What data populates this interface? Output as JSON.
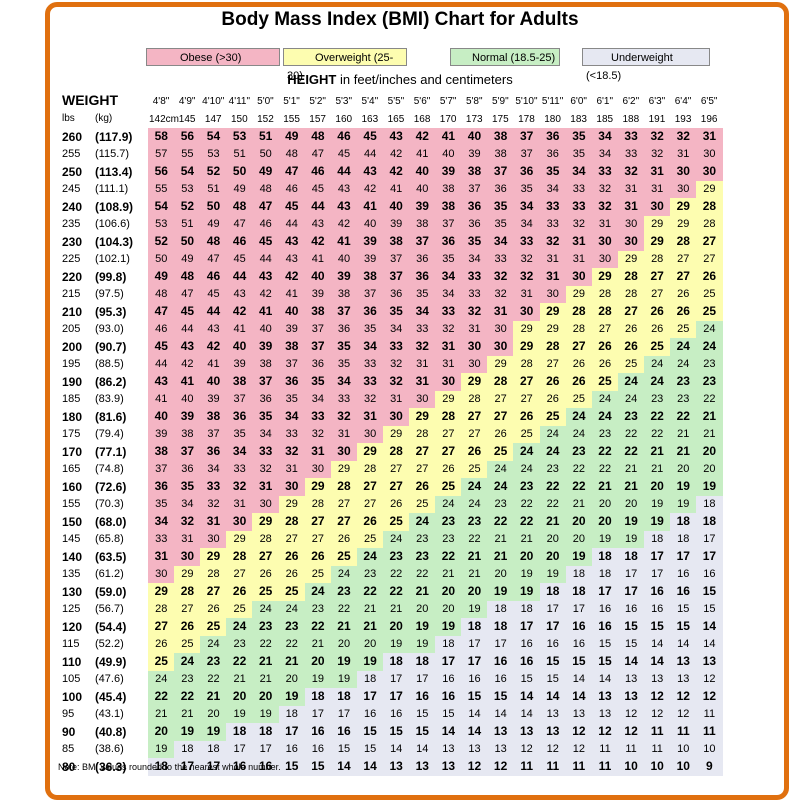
{
  "title": "Body Mass Index (BMI) Chart for Adults",
  "legend": [
    {
      "label": "Obese (>30)",
      "color": "#f4b5c4"
    },
    {
      "label": "Overweight (25-30)",
      "color": "#fdfdb0"
    },
    {
      "label": "Normal (18.5-25)",
      "color": "#c7eec4"
    },
    {
      "label": "Underweight (<18.5)",
      "color": "#e6e8f2"
    }
  ],
  "height_header_bold": "HEIGHT",
  "height_header_rest": " in feet/inches and centimeters",
  "weight_header": "WEIGHT",
  "unit_lbs": "lbs",
  "unit_kg": "(kg)",
  "note": "Note: BMI values rounded to the nearest whole number.",
  "chart_data": {
    "type": "table",
    "heights_ft": [
      "4'8\"",
      "4'9\"",
      "4'10\"",
      "4'11\"",
      "5'0\"",
      "5'1\"",
      "5'2\"",
      "5'3\"",
      "5'4\"",
      "5'5\"",
      "5'6\"",
      "5'7\"",
      "5'8\"",
      "5'9\"",
      "5'10\"",
      "5'11\"",
      "6'0\"",
      "6'1\"",
      "6'2\"",
      "6'3\"",
      "6'4\"",
      "6'5\""
    ],
    "heights_cm": [
      "142cm",
      "145",
      "147",
      "150",
      "152",
      "155",
      "157",
      "160",
      "163",
      "165",
      "168",
      "170",
      "173",
      "175",
      "178",
      "180",
      "183",
      "185",
      "188",
      "191",
      "193",
      "196"
    ],
    "weights_lbs": [
      "260",
      "255",
      "250",
      "245",
      "240",
      "235",
      "230",
      "225",
      "220",
      "215",
      "210",
      "205",
      "200",
      "195",
      "190",
      "185",
      "180",
      "175",
      "170",
      "165",
      "160",
      "155",
      "150",
      "145",
      "140",
      "135",
      "130",
      "125",
      "120",
      "115",
      "110",
      "105",
      "100",
      "95",
      "90",
      "85",
      "80"
    ],
    "weights_kg": [
      "(117.9)",
      "(115.7)",
      "(113.4)",
      "(111.1)",
      "(108.9)",
      "(106.6)",
      "(104.3)",
      "(102.1)",
      "(99.8)",
      "(97.5)",
      "(95.3)",
      "(93.0)",
      "(90.7)",
      "(88.5)",
      "(86.2)",
      "(83.9)",
      "(81.6)",
      "(79.4)",
      "(77.1)",
      "(74.8)",
      "(72.6)",
      "(70.3)",
      "(68.0)",
      "(65.8)",
      "(63.5)",
      "(61.2)",
      "(59.0)",
      "(56.7)",
      "(54.4)",
      "(52.2)",
      "(49.9)",
      "(47.6)",
      "(45.4)",
      "(43.1)",
      "(40.8)",
      "(38.6)",
      "(36.3)"
    ],
    "bmi": [
      [
        58,
        56,
        54,
        53,
        51,
        49,
        48,
        46,
        45,
        43,
        42,
        41,
        40,
        38,
        37,
        36,
        35,
        34,
        33,
        32,
        32,
        31
      ],
      [
        57,
        55,
        53,
        51,
        50,
        48,
        47,
        45,
        44,
        42,
        41,
        40,
        39,
        38,
        37,
        36,
        35,
        34,
        33,
        32,
        31,
        30
      ],
      [
        56,
        54,
        52,
        50,
        49,
        47,
        46,
        44,
        43,
        42,
        40,
        39,
        38,
        37,
        36,
        35,
        34,
        33,
        32,
        31,
        30,
        30
      ],
      [
        55,
        53,
        51,
        49,
        48,
        46,
        45,
        43,
        42,
        41,
        40,
        38,
        37,
        36,
        35,
        34,
        33,
        32,
        31,
        31,
        30,
        29
      ],
      [
        54,
        52,
        50,
        48,
        47,
        45,
        44,
        43,
        41,
        40,
        39,
        38,
        36,
        35,
        34,
        33,
        33,
        32,
        31,
        30,
        29,
        28
      ],
      [
        53,
        51,
        49,
        47,
        46,
        44,
        43,
        42,
        40,
        39,
        38,
        37,
        36,
        35,
        34,
        33,
        32,
        31,
        30,
        29,
        29,
        28
      ],
      [
        52,
        50,
        48,
        46,
        45,
        43,
        42,
        41,
        39,
        38,
        37,
        36,
        35,
        34,
        33,
        32,
        31,
        30,
        30,
        29,
        28,
        27
      ],
      [
        50,
        49,
        47,
        45,
        44,
        43,
        41,
        40,
        39,
        37,
        36,
        35,
        34,
        33,
        32,
        31,
        31,
        30,
        29,
        28,
        27,
        27
      ],
      [
        49,
        48,
        46,
        44,
        43,
        42,
        40,
        39,
        38,
        37,
        36,
        34,
        33,
        32,
        32,
        31,
        30,
        29,
        28,
        27,
        27,
        26
      ],
      [
        48,
        47,
        45,
        43,
        42,
        41,
        39,
        38,
        37,
        36,
        35,
        34,
        33,
        32,
        31,
        30,
        29,
        28,
        28,
        27,
        26,
        25
      ],
      [
        47,
        45,
        44,
        42,
        41,
        40,
        38,
        37,
        36,
        35,
        34,
        33,
        32,
        31,
        30,
        29,
        28,
        28,
        27,
        26,
        26,
        25
      ],
      [
        46,
        44,
        43,
        41,
        40,
        39,
        37,
        36,
        35,
        34,
        33,
        32,
        31,
        30,
        29,
        29,
        28,
        27,
        26,
        26,
        25,
        24
      ],
      [
        45,
        43,
        42,
        40,
        39,
        38,
        37,
        35,
        34,
        33,
        32,
        31,
        30,
        30,
        29,
        28,
        27,
        26,
        26,
        25,
        24,
        24
      ],
      [
        44,
        42,
        41,
        39,
        38,
        37,
        36,
        35,
        33,
        32,
        31,
        31,
        30,
        29,
        28,
        27,
        26,
        26,
        25,
        24,
        24,
        23
      ],
      [
        43,
        41,
        40,
        38,
        37,
        36,
        35,
        34,
        33,
        32,
        31,
        30,
        29,
        28,
        27,
        26,
        26,
        25,
        24,
        24,
        23,
        23
      ],
      [
        41,
        40,
        39,
        37,
        36,
        35,
        34,
        33,
        32,
        31,
        30,
        29,
        28,
        27,
        27,
        26,
        25,
        24,
        24,
        23,
        23,
        22
      ],
      [
        40,
        39,
        38,
        36,
        35,
        34,
        33,
        32,
        31,
        30,
        29,
        28,
        27,
        27,
        26,
        25,
        24,
        24,
        23,
        22,
        22,
        21
      ],
      [
        39,
        38,
        37,
        35,
        34,
        33,
        32,
        31,
        30,
        29,
        28,
        27,
        27,
        26,
        25,
        24,
        24,
        23,
        22,
        22,
        21,
        21
      ],
      [
        38,
        37,
        36,
        34,
        33,
        32,
        31,
        30,
        29,
        28,
        27,
        27,
        26,
        25,
        24,
        24,
        23,
        22,
        22,
        21,
        21,
        20
      ],
      [
        37,
        36,
        34,
        33,
        32,
        31,
        30,
        29,
        28,
        27,
        27,
        26,
        25,
        24,
        24,
        23,
        22,
        22,
        21,
        21,
        20,
        20
      ],
      [
        36,
        35,
        33,
        32,
        31,
        30,
        29,
        28,
        27,
        27,
        26,
        25,
        24,
        24,
        23,
        22,
        22,
        21,
        21,
        20,
        19,
        19
      ],
      [
        35,
        34,
        32,
        31,
        30,
        29,
        28,
        27,
        27,
        26,
        25,
        24,
        24,
        23,
        22,
        22,
        21,
        20,
        20,
        19,
        19,
        18
      ],
      [
        34,
        32,
        31,
        30,
        29,
        28,
        27,
        27,
        26,
        25,
        24,
        23,
        23,
        22,
        22,
        21,
        20,
        20,
        19,
        19,
        18,
        18
      ],
      [
        33,
        31,
        30,
        29,
        28,
        27,
        27,
        26,
        25,
        24,
        23,
        23,
        22,
        21,
        21,
        20,
        20,
        19,
        19,
        18,
        18,
        17
      ],
      [
        31,
        30,
        29,
        28,
        27,
        26,
        26,
        25,
        24,
        23,
        23,
        22,
        21,
        21,
        20,
        20,
        19,
        18,
        18,
        17,
        17,
        17
      ],
      [
        30,
        29,
        28,
        27,
        26,
        26,
        25,
        24,
        23,
        22,
        22,
        21,
        21,
        20,
        19,
        19,
        18,
        18,
        17,
        17,
        16,
        16
      ],
      [
        29,
        28,
        27,
        26,
        25,
        25,
        24,
        23,
        22,
        22,
        21,
        20,
        20,
        19,
        19,
        18,
        18,
        17,
        17,
        16,
        16,
        15
      ],
      [
        28,
        27,
        26,
        25,
        24,
        24,
        23,
        22,
        21,
        21,
        20,
        20,
        19,
        18,
        18,
        17,
        17,
        16,
        16,
        16,
        15,
        15
      ],
      [
        27,
        26,
        25,
        24,
        23,
        23,
        22,
        21,
        21,
        20,
        19,
        19,
        18,
        18,
        17,
        17,
        16,
        16,
        15,
        15,
        15,
        14
      ],
      [
        26,
        25,
        24,
        23,
        22,
        22,
        21,
        20,
        20,
        19,
        19,
        18,
        17,
        17,
        16,
        16,
        16,
        15,
        15,
        14,
        14,
        14
      ],
      [
        25,
        24,
        23,
        22,
        21,
        21,
        20,
        19,
        19,
        18,
        18,
        17,
        17,
        16,
        16,
        15,
        15,
        15,
        14,
        14,
        13,
        13
      ],
      [
        24,
        23,
        22,
        21,
        21,
        20,
        19,
        19,
        18,
        17,
        17,
        16,
        16,
        16,
        15,
        15,
        14,
        14,
        13,
        13,
        13,
        12
      ],
      [
        22,
        22,
        21,
        20,
        20,
        19,
        18,
        18,
        17,
        17,
        16,
        16,
        15,
        15,
        14,
        14,
        14,
        13,
        13,
        12,
        12,
        12
      ],
      [
        21,
        21,
        20,
        19,
        19,
        18,
        17,
        17,
        16,
        16,
        15,
        15,
        14,
        14,
        14,
        13,
        13,
        13,
        12,
        12,
        12,
        11
      ],
      [
        20,
        19,
        19,
        18,
        18,
        17,
        16,
        16,
        15,
        15,
        15,
        14,
        14,
        13,
        13,
        13,
        12,
        12,
        12,
        11,
        11,
        11
      ],
      [
        19,
        18,
        18,
        17,
        17,
        16,
        16,
        15,
        15,
        14,
        14,
        13,
        13,
        13,
        12,
        12,
        12,
        11,
        11,
        11,
        10,
        10
      ],
      [
        18,
        17,
        17,
        16,
        16,
        15,
        15,
        14,
        14,
        13,
        13,
        13,
        12,
        12,
        11,
        11,
        11,
        11,
        10,
        10,
        10,
        9
      ]
    ],
    "category_thresholds": {
      "obese_min": 30,
      "overweight_min": 25,
      "normal_min": 19
    }
  }
}
